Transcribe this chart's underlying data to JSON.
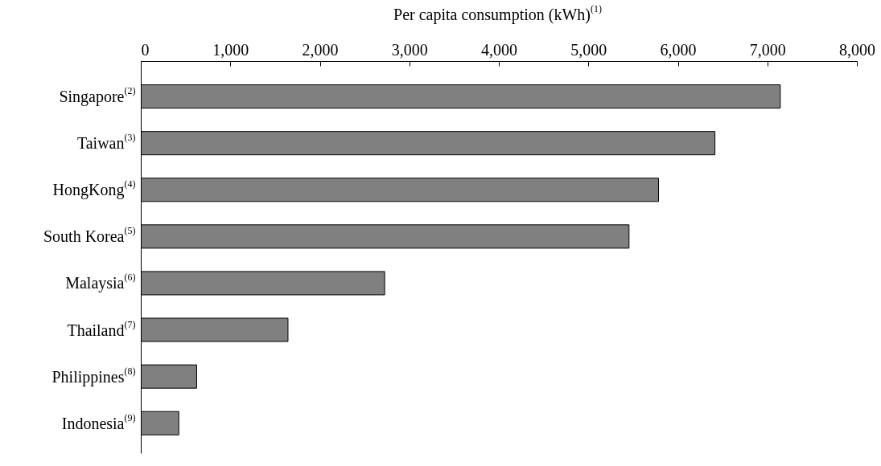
{
  "chart_data": {
    "type": "bar",
    "orientation": "horizontal",
    "xlabel": "Per capita consumption (kWh)$^{(1)}$",
    "categories": [
      "Singapore$^{(2)}$",
      "Taiwan$^{(3)}$",
      "HongKong$^{(4)}$",
      "South Korea$^{(5)}$",
      "Malaysia$^{(6)}$",
      "Thailand$^{(7)}$",
      "Philippines$^{(8)}$",
      "Indonesia$^{(9)}$"
    ],
    "values": [
      7140,
      6410,
      5780,
      5450,
      2720,
      1640,
      620,
      420
    ],
    "color": "#808080",
    "xlim": [
      0,
      8000
    ],
    "xticks": [
      0,
      {
        "value": 1000,
        "label": "1,000"
      },
      {
        "value": 2000,
        "label": "2,000"
      },
      {
        "value": 3000,
        "label": "3,000"
      },
      {
        "value": 4000,
        "label": "4,000"
      },
      {
        "value": 5000,
        "label": "5,000"
      },
      {
        "value": 6000,
        "label": "6,000"
      },
      {
        "value": 7000,
        "label": "7,000"
      },
      {
        "value": 8000,
        "label": "8,000"
      }
    ],
    "grid": false
  }
}
